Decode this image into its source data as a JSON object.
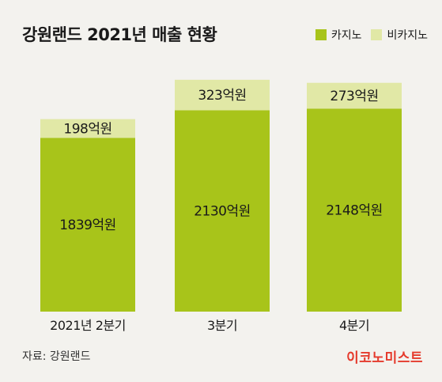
{
  "chart_data": {
    "type": "bar",
    "stacked": true,
    "title": "강원랜드 2021년 매출 현황",
    "categories": [
      "2021년 2분기",
      "3분기",
      "4분기"
    ],
    "series": [
      {
        "name": "카지노",
        "values": [
          1839,
          2130,
          2148
        ],
        "labels": [
          "1839억원",
          "2130억원",
          "2148억원"
        ],
        "color": "#a8c41a"
      },
      {
        "name": "비카지노",
        "values": [
          198,
          323,
          273
        ],
        "labels": [
          "198억원",
          "323억원",
          "273억원"
        ],
        "color": "#e1e8a6"
      }
    ],
    "unit": "억원",
    "legend_position": "top-right",
    "grid": false
  },
  "source": "자료: 강원랜드",
  "brand": "이코노미스트"
}
